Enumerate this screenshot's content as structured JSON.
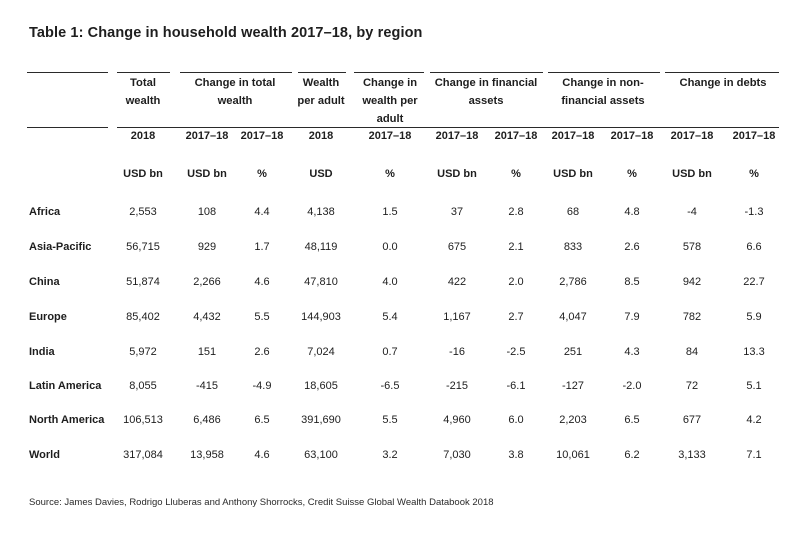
{
  "title": "Table 1: Change in household wealth 2017–18, by region",
  "columns": [
    {
      "header": "Total wealth",
      "year": "2018",
      "unit": "USD bn"
    },
    {
      "header": "Change in total wealth",
      "year": "2017–18",
      "unit": "USD bn"
    },
    {
      "header": "",
      "year": "2017–18",
      "unit": "%"
    },
    {
      "header": "Wealth per adult",
      "year": "2018",
      "unit": "USD"
    },
    {
      "header": "Change in wealth per adult",
      "year": "2017–18",
      "unit": "%"
    },
    {
      "header": "Change in financial assets",
      "year": "2017–18",
      "unit": "USD bn"
    },
    {
      "header": "",
      "year": "2017–18",
      "unit": "%"
    },
    {
      "header": "Change in non-financial assets",
      "year": "2017–18",
      "unit": "USD bn"
    },
    {
      "header": "",
      "year": "2017–18",
      "unit": "%"
    },
    {
      "header": "Change in debts",
      "year": "2017–18",
      "unit": "USD bn"
    },
    {
      "header": "",
      "year": "2017–18",
      "unit": "%"
    }
  ],
  "rows": [
    {
      "region": "Africa",
      "values": [
        "2,553",
        "108",
        "4.4",
        "4,138",
        "1.5",
        "37",
        "2.8",
        "68",
        "4.8",
        "-4",
        "-1.3"
      ]
    },
    {
      "region": "Asia-Pacific",
      "values": [
        "56,715",
        "929",
        "1.7",
        "48,119",
        "0.0",
        "675",
        "2.1",
        "833",
        "2.6",
        "578",
        "6.6"
      ]
    },
    {
      "region": "China",
      "values": [
        "51,874",
        "2,266",
        "4.6",
        "47,810",
        "4.0",
        "422",
        "2.0",
        "2,786",
        "8.5",
        "942",
        "22.7"
      ]
    },
    {
      "region": "Europe",
      "values": [
        "85,402",
        "4,432",
        "5.5",
        "144,903",
        "5.4",
        "1,167",
        "2.7",
        "4,047",
        "7.9",
        "782",
        "5.9"
      ]
    },
    {
      "region": "India",
      "values": [
        "5,972",
        "151",
        "2.6",
        "7,024",
        "0.7",
        "-16",
        "-2.5",
        "251",
        "4.3",
        "84",
        "13.3"
      ]
    },
    {
      "region": "Latin America",
      "values": [
        "8,055",
        "-415",
        "-4.9",
        "18,605",
        "-6.5",
        "-215",
        "-6.1",
        "-127",
        "-2.0",
        "72",
        "5.1"
      ]
    },
    {
      "region": "North America",
      "values": [
        "106,513",
        "6,486",
        "6.5",
        "391,690",
        "5.5",
        "4,960",
        "6.0",
        "2,203",
        "6.5",
        "677",
        "4.2"
      ]
    },
    {
      "region": "World",
      "values": [
        "317,084",
        "13,958",
        "4.6",
        "63,100",
        "3.2",
        "7,030",
        "3.8",
        "10,061",
        "6.2",
        "3,133",
        "7.1"
      ]
    }
  ],
  "source": "Source: James Davies, Rodrigo Lluberas and Anthony Shorrocks, Credit Suisse Global Wealth Databook 2018"
}
